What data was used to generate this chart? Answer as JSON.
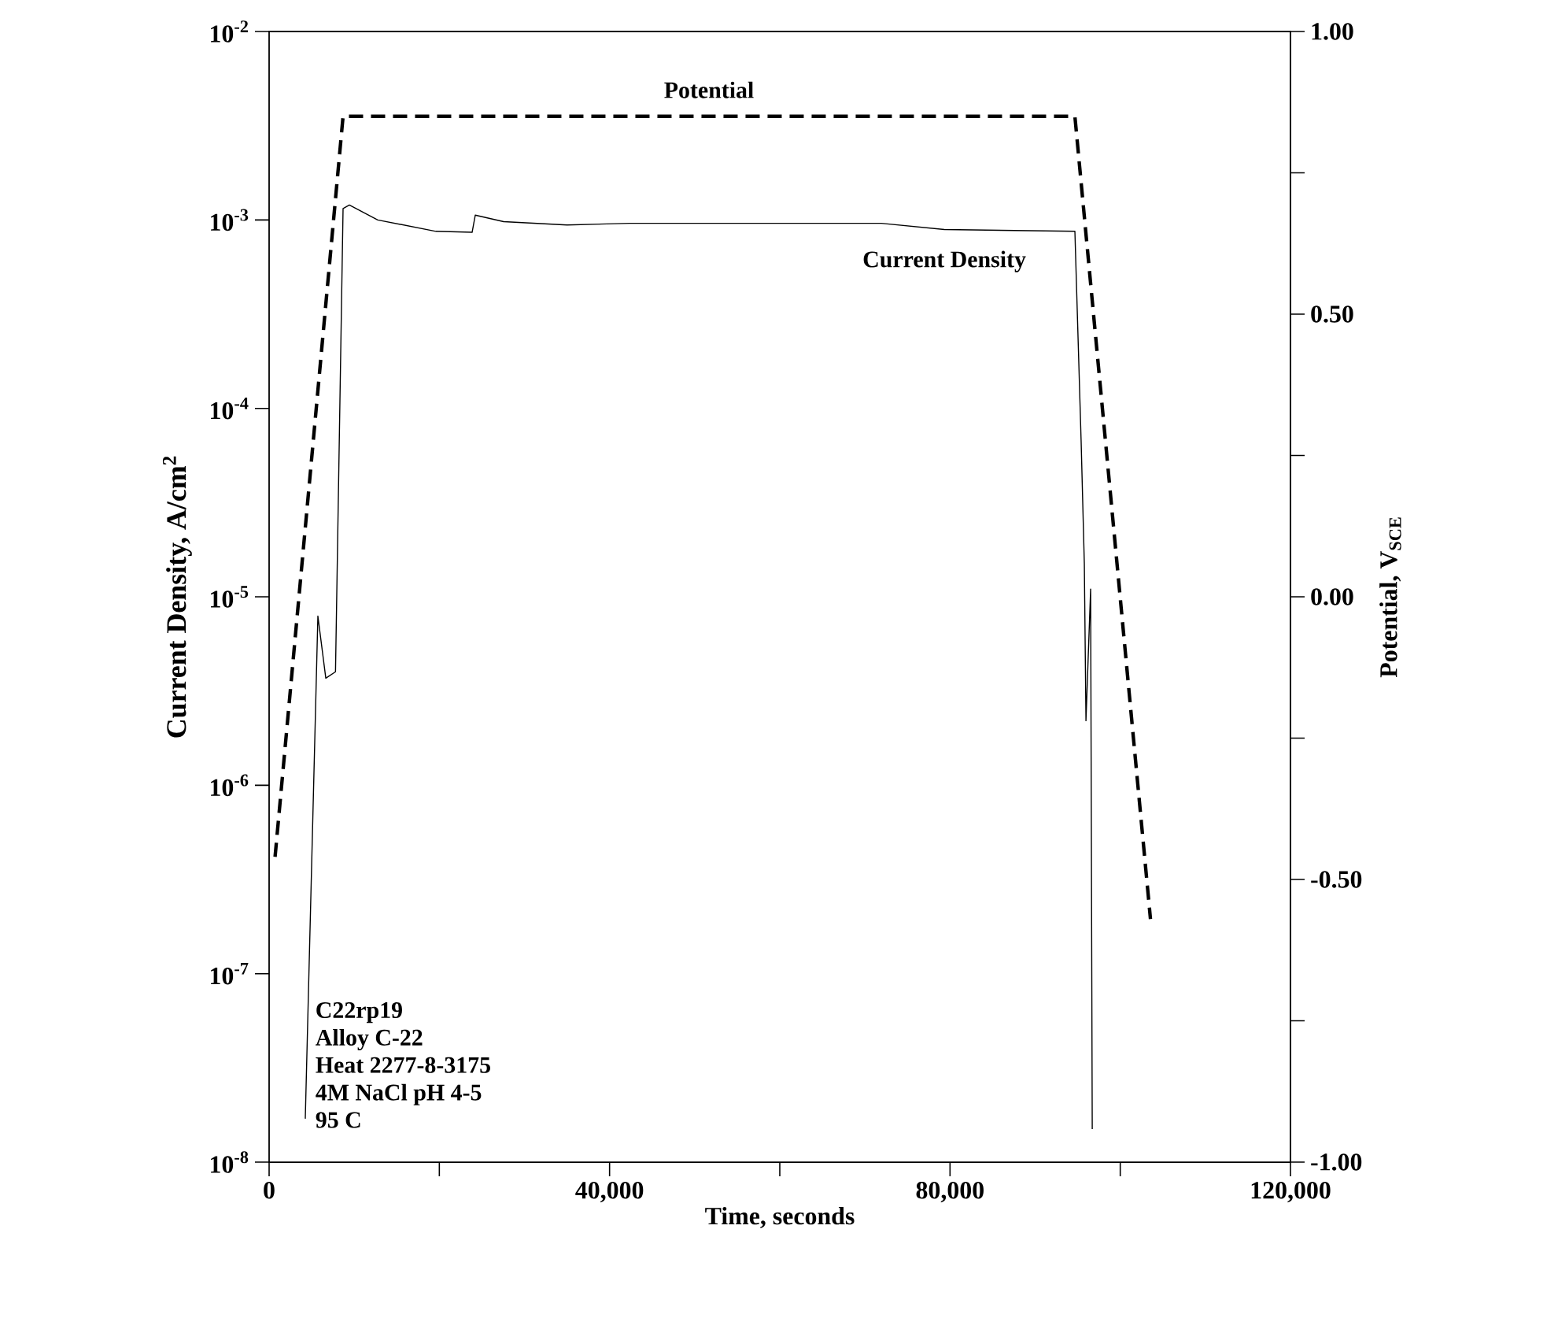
{
  "chart_data": {
    "type": "line",
    "xlabel": "Time, seconds",
    "ylabel": "Current Density, A/cm$^{2}$",
    "y2label": "Potential, V$_{SCE}$",
    "log": "y",
    "grid": false,
    "xlim": [
      0,
      120000
    ],
    "xticks": [
      0,
      {
        "value": 20000,
        "label": null
      },
      {
        "value": 40000,
        "label": "40,000"
      },
      {
        "value": 60000,
        "label": null
      },
      {
        "value": 80000,
        "label": "80,000"
      },
      {
        "value": 100000,
        "label": null
      },
      {
        "value": 120000,
        "label": "120,000"
      }
    ],
    "ylim": [
      1e-08,
      0.01
    ],
    "yticks": [
      {
        "value": 1e-08,
        "label": "10$^{-8}$"
      },
      {
        "value": 1e-07,
        "label": "10$^{-7}$"
      },
      {
        "value": 1e-06,
        "label": "10$^{-6}$"
      },
      {
        "value": 1e-05,
        "label": "10$^{-5}$"
      },
      {
        "value": 0.0001,
        "label": "10$^{-4}$"
      },
      {
        "value": 0.001,
        "label": "10$^{-3}$"
      },
      {
        "value": 0.01,
        "label": "10$^{-2}$"
      }
    ],
    "y2lim": [
      -1,
      1
    ],
    "y2ticks": [
      {
        "value": -1,
        "label": "-1.00"
      },
      {
        "value": -0.75,
        "label": null
      },
      {
        "value": -0.5,
        "label": "-0.50"
      },
      {
        "value": -0.25,
        "label": null
      },
      {
        "value": 0,
        "label": "0.00"
      },
      {
        "value": 0.25,
        "label": null
      },
      {
        "value": 0.5,
        "label": "0.50"
      },
      {
        "value": 0.75,
        "label": null
      },
      {
        "value": 1,
        "label": "1.00"
      }
    ],
    "series": [
      {
        "name": "Current Density",
        "color": "#000000",
        "line_style": "solid",
        "x": [
          4250,
          5730,
          6660,
          7800,
          8690,
          9430,
          12760,
          19600,
          23850,
          24220,
          27550,
          35000,
          42340,
          57140,
          71930,
          79330,
          94670,
          95400,
          95780,
          95970,
          96520,
          96710
        ],
        "values": [
          1.7e-08,
          7.9e-06,
          3.7e-06,
          4e-06,
          0.00115,
          0.0012,
          0.001,
          0.00087,
          0.00086,
          0.00106,
          0.00098,
          0.00094,
          0.00096,
          0.00096,
          0.00096,
          0.00089,
          0.00087,
          6.8e-05,
          1.5e-05,
          2.2e-06,
          1.1e-05,
          1.5e-08
        ]
      },
      {
        "name": "Potential",
        "color": "#000000",
        "line_style": "dashed",
        "axis": "y2",
        "x": [
          700,
          8690,
          94670,
          103550
        ],
        "values": [
          -0.46,
          0.85,
          0.85,
          -0.57
        ]
      }
    ],
    "annotations": [
      "C22rp19",
      "Alloy C-22",
      "Heat 2277-8-3175",
      "4M NaCl pH 4-5",
      "95 C"
    ]
  }
}
